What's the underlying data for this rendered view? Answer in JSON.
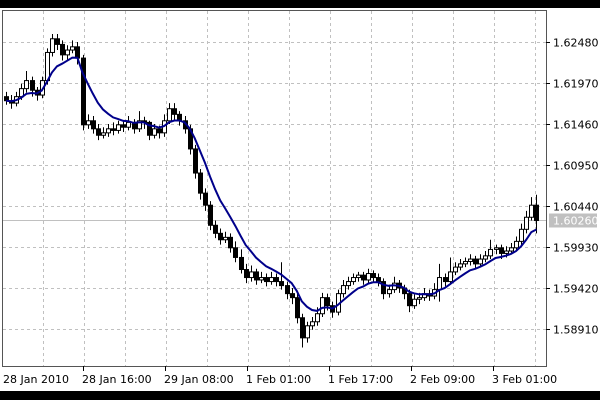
{
  "chart_data": {
    "type": "candlestick",
    "title": "",
    "xlabel": "",
    "ylabel": "",
    "ylim": [
      1.587,
      1.628
    ],
    "grid": true,
    "y_ticks": [
      "1.62480",
      "1.61970",
      "1.61460",
      "1.60950",
      "1.60440",
      "1.59930",
      "1.59420",
      "1.58910"
    ],
    "x_ticks": [
      "28 Jan 2010",
      "28 Jan 16:00",
      "29 Jan 08:00",
      "1 Feb 01:00",
      "1 Feb 17:00",
      "2 Feb 09:00",
      "3 Feb 01:00"
    ],
    "current_price": "1.60260",
    "colors": {
      "background": "#ffffff",
      "grid": "#c0c0c0",
      "candle": "#000000",
      "bull_body": "#ffffff",
      "bear_body": "#000000",
      "moving_average": "#00008b",
      "price_line": "#c0c0c0",
      "price_label_bg": "#c0c0c0"
    },
    "series": [
      {
        "type": "ohlc",
        "columns": [
          "open",
          "high",
          "low",
          "close"
        ],
        "values": [
          [
            1.618,
            1.6186,
            1.617,
            1.6175
          ],
          [
            1.6175,
            1.6182,
            1.6165,
            1.6172
          ],
          [
            1.6172,
            1.6186,
            1.6168,
            1.618
          ],
          [
            1.618,
            1.6196,
            1.6176,
            1.619
          ],
          [
            1.619,
            1.6212,
            1.6185,
            1.62
          ],
          [
            1.62,
            1.6205,
            1.618,
            1.6188
          ],
          [
            1.6188,
            1.6192,
            1.6175,
            1.6182
          ],
          [
            1.6182,
            1.6205,
            1.6178,
            1.62
          ],
          [
            1.62,
            1.624,
            1.6195,
            1.6235
          ],
          [
            1.6235,
            1.6258,
            1.623,
            1.6252
          ],
          [
            1.6252,
            1.6258,
            1.6238,
            1.6245
          ],
          [
            1.6245,
            1.625,
            1.6225,
            1.6232
          ],
          [
            1.6232,
            1.6244,
            1.6226,
            1.6238
          ],
          [
            1.6238,
            1.625,
            1.6234,
            1.6242
          ],
          [
            1.6242,
            1.6248,
            1.622,
            1.6228
          ],
          [
            1.6228,
            1.6232,
            1.6138,
            1.6145
          ],
          [
            1.6145,
            1.6158,
            1.614,
            1.615
          ],
          [
            1.615,
            1.6156,
            1.6134,
            1.614
          ],
          [
            1.614,
            1.6146,
            1.6126,
            1.6132
          ],
          [
            1.6132,
            1.6142,
            1.6128,
            1.6135
          ],
          [
            1.6135,
            1.6146,
            1.613,
            1.614
          ],
          [
            1.614,
            1.6148,
            1.6132,
            1.6138
          ],
          [
            1.6138,
            1.615,
            1.6134,
            1.6145
          ],
          [
            1.6145,
            1.615,
            1.6136,
            1.6142
          ],
          [
            1.6142,
            1.6156,
            1.6138,
            1.6148
          ],
          [
            1.6148,
            1.6152,
            1.6134,
            1.614
          ],
          [
            1.614,
            1.6162,
            1.6136,
            1.615
          ],
          [
            1.615,
            1.6155,
            1.614,
            1.6148
          ],
          [
            1.6148,
            1.615,
            1.6126,
            1.6132
          ],
          [
            1.6132,
            1.6146,
            1.6128,
            1.614
          ],
          [
            1.614,
            1.6144,
            1.6128,
            1.6135
          ],
          [
            1.6135,
            1.6158,
            1.613,
            1.615
          ],
          [
            1.615,
            1.6172,
            1.6146,
            1.6165
          ],
          [
            1.6165,
            1.6172,
            1.615,
            1.6158
          ],
          [
            1.6158,
            1.6162,
            1.6144,
            1.615
          ],
          [
            1.615,
            1.6156,
            1.6134,
            1.614
          ],
          [
            1.614,
            1.6145,
            1.6108,
            1.6115
          ],
          [
            1.6115,
            1.612,
            1.6078,
            1.6085
          ],
          [
            1.6085,
            1.609,
            1.6052,
            1.606
          ],
          [
            1.606,
            1.6066,
            1.6038,
            1.6045
          ],
          [
            1.6045,
            1.605,
            1.6014,
            1.602
          ],
          [
            1.602,
            1.6026,
            1.6004,
            1.601
          ],
          [
            1.601,
            1.6016,
            1.5996,
            1.6002
          ],
          [
            1.6002,
            1.6012,
            1.5998,
            1.6005
          ],
          [
            1.6005,
            1.601,
            1.5986,
            1.5992
          ],
          [
            1.5992,
            1.6,
            1.5974,
            1.598
          ],
          [
            1.598,
            1.599,
            1.596,
            1.5965
          ],
          [
            1.5965,
            1.5972,
            1.5948,
            1.5955
          ],
          [
            1.5955,
            1.597,
            1.595,
            1.5962
          ],
          [
            1.5962,
            1.5966,
            1.5946,
            1.5952
          ],
          [
            1.5952,
            1.5962,
            1.5948,
            1.5955
          ],
          [
            1.5955,
            1.596,
            1.5944,
            1.595
          ],
          [
            1.595,
            1.5962,
            1.5946,
            1.5955
          ],
          [
            1.5955,
            1.596,
            1.5944,
            1.595
          ],
          [
            1.595,
            1.5974,
            1.594,
            1.5945
          ],
          [
            1.5945,
            1.595,
            1.5928,
            1.5935
          ],
          [
            1.5935,
            1.5942,
            1.5922,
            1.593
          ],
          [
            1.593,
            1.5935,
            1.5898,
            1.5905
          ],
          [
            1.5905,
            1.591,
            1.5868,
            1.588
          ],
          [
            1.588,
            1.59,
            1.5874,
            1.5895
          ],
          [
            1.5895,
            1.5906,
            1.589,
            1.59
          ],
          [
            1.59,
            1.5918,
            1.5895,
            1.591
          ],
          [
            1.591,
            1.5936,
            1.5906,
            1.593
          ],
          [
            1.593,
            1.5935,
            1.5914,
            1.592
          ],
          [
            1.592,
            1.5925,
            1.5905,
            1.5912
          ],
          [
            1.5912,
            1.594,
            1.5908,
            1.5935
          ],
          [
            1.5935,
            1.5952,
            1.593,
            1.5945
          ],
          [
            1.5945,
            1.5956,
            1.594,
            1.595
          ],
          [
            1.595,
            1.596,
            1.5946,
            1.5955
          ],
          [
            1.5955,
            1.5962,
            1.595,
            1.5958
          ],
          [
            1.5958,
            1.5962,
            1.5946,
            1.5952
          ],
          [
            1.5952,
            1.5966,
            1.5948,
            1.596
          ],
          [
            1.596,
            1.5964,
            1.595,
            1.5955
          ],
          [
            1.5955,
            1.596,
            1.5944,
            1.595
          ],
          [
            1.595,
            1.5954,
            1.5928,
            1.5935
          ],
          [
            1.5935,
            1.5946,
            1.593,
            1.594
          ],
          [
            1.594,
            1.5956,
            1.5936,
            1.5948
          ],
          [
            1.5948,
            1.5952,
            1.5936,
            1.5942
          ],
          [
            1.5942,
            1.5946,
            1.5928,
            1.5935
          ],
          [
            1.5935,
            1.594,
            1.5912,
            1.592
          ],
          [
            1.592,
            1.5934,
            1.5916,
            1.5928
          ],
          [
            1.5928,
            1.5936,
            1.5922,
            1.593
          ],
          [
            1.593,
            1.5942,
            1.5926,
            1.5935
          ],
          [
            1.5935,
            1.594,
            1.5926,
            1.5932
          ],
          [
            1.5932,
            1.5948,
            1.5928,
            1.594
          ],
          [
            1.594,
            1.5972,
            1.5925,
            1.5955
          ],
          [
            1.5955,
            1.596,
            1.5944,
            1.595
          ],
          [
            1.595,
            1.598,
            1.5946,
            1.5962
          ],
          [
            1.5962,
            1.5974,
            1.5958,
            1.5968
          ],
          [
            1.5968,
            1.5978,
            1.5964,
            1.5972
          ],
          [
            1.5972,
            1.598,
            1.5968,
            1.5975
          ],
          [
            1.5975,
            1.5984,
            1.597,
            1.5978
          ],
          [
            1.5978,
            1.5982,
            1.5966,
            1.5972
          ],
          [
            1.5972,
            1.5984,
            1.5968,
            1.5978
          ],
          [
            1.5978,
            1.5988,
            1.5974,
            1.5982
          ],
          [
            1.5982,
            1.6002,
            1.5978,
            1.599
          ],
          [
            1.599,
            1.5996,
            1.5984,
            1.5992
          ],
          [
            1.5992,
            1.5996,
            1.5978,
            1.5985
          ],
          [
            1.5985,
            1.5994,
            1.598,
            1.5988
          ],
          [
            1.5988,
            1.5998,
            1.5984,
            1.5992
          ],
          [
            1.5992,
            1.6006,
            1.5988,
            1.6
          ],
          [
            1.6,
            1.6022,
            1.5996,
            1.6015
          ],
          [
            1.6015,
            1.6038,
            1.601,
            1.603
          ],
          [
            1.603,
            1.6055,
            1.6026,
            1.6045
          ],
          [
            1.6045,
            1.6058,
            1.601,
            1.6026
          ]
        ]
      },
      {
        "type": "line",
        "indicator": "moving-average",
        "source": "close"
      }
    ]
  }
}
